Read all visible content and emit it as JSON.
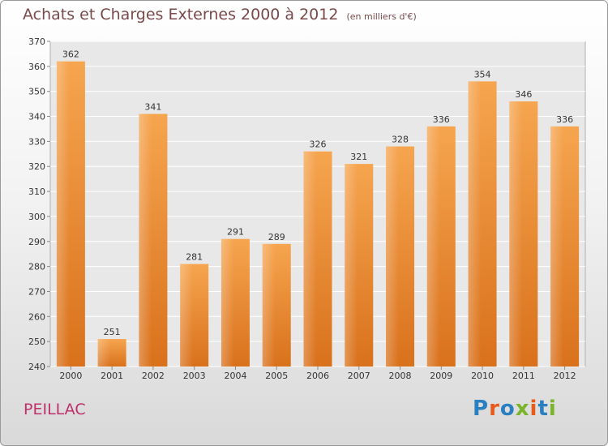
{
  "title": "Achats et Charges Externes 2000 à 2012",
  "unit": "(en milliers d'€)",
  "place": "PEILLAC",
  "logo": {
    "letters": [
      "P",
      "r",
      "o",
      "x",
      "i",
      "t",
      "i"
    ],
    "colors": [
      "#2a7fc0",
      "#e85a1b",
      "#2a7fc0",
      "#79b42a",
      "#e85a1b",
      "#2a7fc0",
      "#79b42a"
    ]
  },
  "chart_data": {
    "type": "bar",
    "categories": [
      "2000",
      "2001",
      "2002",
      "2003",
      "2004",
      "2005",
      "2006",
      "2007",
      "2008",
      "2009",
      "2010",
      "2011",
      "2012"
    ],
    "values": [
      362,
      251,
      341,
      281,
      291,
      289,
      326,
      321,
      328,
      336,
      354,
      346,
      336
    ],
    "ylim": [
      240,
      370
    ],
    "yticks": [
      240,
      250,
      260,
      270,
      280,
      290,
      300,
      310,
      320,
      330,
      340,
      350,
      360,
      370
    ],
    "grid": true,
    "bar_color": "#f0a04a"
  }
}
